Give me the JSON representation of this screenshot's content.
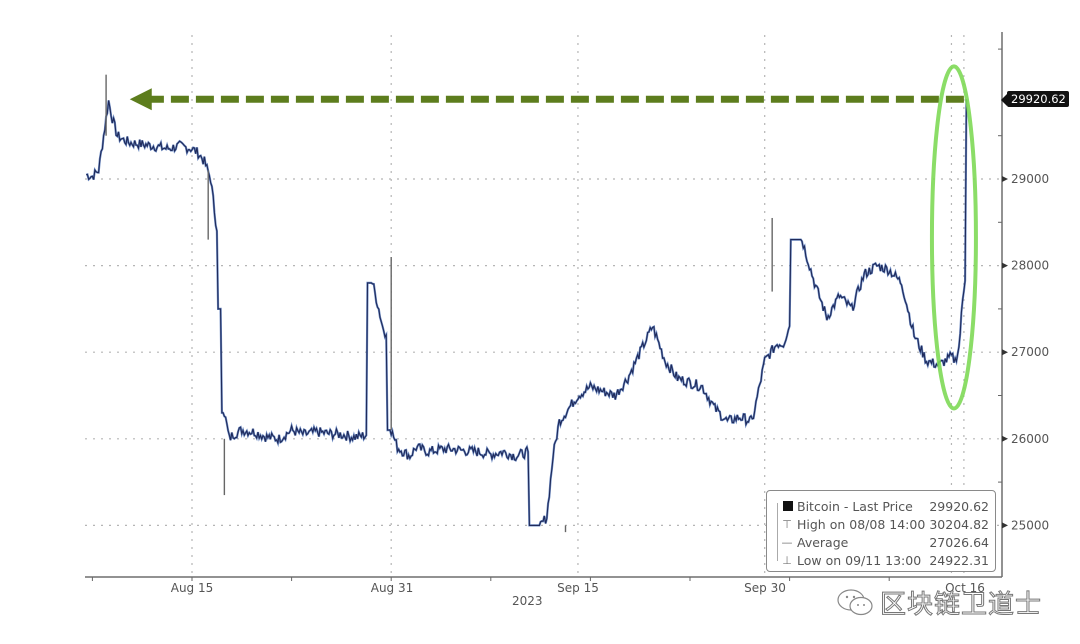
{
  "chart_data": {
    "type": "line",
    "title": "",
    "xlabel": "2023",
    "ylabel": "",
    "ylim": [
      24700,
      30700
    ],
    "grid": true,
    "y_axis_position": "right",
    "y_ticks": [
      25000,
      26000,
      27000,
      28000,
      29000
    ],
    "x_ticks": [
      {
        "label": "Aug 15",
        "day": 15
      },
      {
        "label": "Aug 31",
        "day": 31
      },
      {
        "label": "Sep 15",
        "day": 46
      },
      {
        "label": "Sep 30",
        "day": 61
      },
      {
        "label": "Oct 16",
        "day": 77
      }
    ],
    "x_year_label": "2023",
    "series": [
      {
        "name": "Bitcoin - Last Price",
        "color": "#1f2a5a",
        "x_day": [
          6.5,
          7,
          7.5,
          8,
          8.3,
          8.6,
          9,
          9.5,
          10,
          11,
          12,
          13,
          14,
          15,
          15.5,
          16,
          16.5,
          17,
          17.3,
          17.6,
          18,
          18.3,
          19,
          20,
          21,
          22,
          23,
          24,
          25,
          26,
          27,
          28,
          29,
          29.5,
          30,
          30.3,
          30.6,
          31,
          31.5,
          32,
          32.5,
          33,
          34,
          35,
          36,
          37,
          38,
          39,
          40,
          41,
          42,
          43,
          43.5,
          44,
          44.5,
          45,
          46,
          47,
          48,
          49,
          50,
          51,
          52,
          53,
          54,
          55,
          56,
          57,
          58,
          59,
          60,
          61,
          62,
          62.5,
          63,
          64,
          65,
          66,
          67,
          68,
          69,
          70,
          71,
          72,
          72.5,
          73,
          74,
          75,
          75.5,
          76,
          76.3,
          76.6,
          76.9,
          77.2
        ],
        "values": [
          29050,
          29030,
          29100,
          29600,
          29900,
          29700,
          29500,
          29450,
          29420,
          29400,
          29380,
          29350,
          29380,
          29350,
          29300,
          29200,
          29000,
          28400,
          27500,
          26300,
          26000,
          26050,
          26100,
          26080,
          26020,
          26000,
          26100,
          26050,
          26080,
          26060,
          26050,
          26020,
          26040,
          27800,
          27500,
          27300,
          27200,
          26100,
          25900,
          25850,
          25800,
          25900,
          25850,
          25880,
          25880,
          25860,
          25850,
          25820,
          25850,
          25800,
          25850,
          25000,
          25100,
          25800,
          26200,
          26300,
          26500,
          26600,
          26550,
          26500,
          26700,
          27000,
          27300,
          26900,
          26700,
          26650,
          26600,
          26350,
          26200,
          26250,
          26200,
          26900,
          27100,
          27100,
          27300,
          28300,
          27800,
          27400,
          27650,
          27500,
          27900,
          28000,
          27950,
          27800,
          27500,
          27200,
          26900,
          26850,
          26900,
          26950,
          26900,
          27050,
          27600,
          28000,
          29920.62
        ]
      }
    ],
    "annotations": {
      "last_price_label": "29920.62",
      "arrow": {
        "direction": "left",
        "y_value": 29920.62,
        "from_day": 77,
        "to_day": 10,
        "color": "#5d7d1d"
      },
      "highlight_ellipse": {
        "center_day": 76.2,
        "y_from": 26350,
        "y_to": 30300,
        "color": "#7ed957"
      }
    },
    "legend": {
      "position": "bottom-right",
      "entries": [
        {
          "label": "Bitcoin - Last Price",
          "value": "29920.62",
          "symbol": "black-square"
        },
        {
          "label": "High on 08/08 14:00",
          "value": "30204.82",
          "symbol": "high-tick"
        },
        {
          "label": "Average",
          "value": "27026.64",
          "symbol": "average-marker"
        },
        {
          "label": "Low on 09/11 13:00",
          "value": "24922.31",
          "symbol": "low-tick"
        }
      ]
    }
  },
  "axis": {
    "y_labels": [
      "29000",
      "28000",
      "27000",
      "26000",
      "25000"
    ],
    "x_labels": [
      "Aug 15",
      "Aug 31",
      "Sep 15",
      "Sep 30",
      "Oct 16"
    ],
    "year": "2023",
    "last_price_tag": "29920.62"
  },
  "legend": {
    "rows": [
      {
        "label": "Bitcoin - Last Price",
        "value": "29920.62"
      },
      {
        "label": "High on 08/08 14:00",
        "value": "30204.82"
      },
      {
        "label": "Average",
        "value": "27026.64"
      },
      {
        "label": "Low on 09/11 13:00",
        "value": "24922.31"
      }
    ]
  },
  "watermark": {
    "text": "区块链卫道士",
    "icon": "wechat-icon"
  },
  "colors": {
    "line": "#1f2a5a",
    "line_highlight": "#4a6fb5",
    "arrow": "#5d7d1d",
    "ellipse": "#7ed957",
    "grid": "#b5b5b5",
    "axis": "#6e6e6e"
  }
}
